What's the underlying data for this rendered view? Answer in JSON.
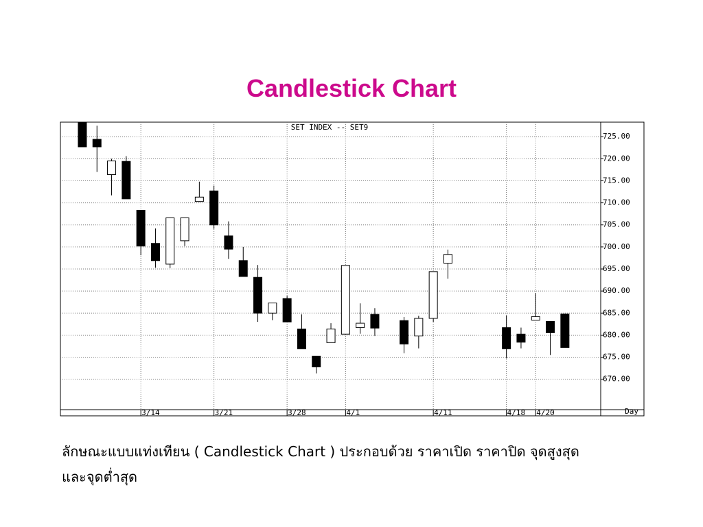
{
  "slide_title": "Candlestick Chart",
  "caption": [
    "ลักษณะแบบแท่งเทียน ( Candlestick Chart ) ประกอบด้วย ราคาเปิด ราคาปิด จุดสูงสุด",
    "และจุดต่ำสุด"
  ],
  "chart_data": {
    "type": "candlestick",
    "title": "SET INDEX -- SET9",
    "x_label": "Day",
    "categories": [
      null,
      null,
      null,
      null,
      "3/14",
      null,
      null,
      null,
      null,
      "3/21",
      null,
      null,
      null,
      null,
      "3/28",
      null,
      null,
      null,
      "4/1",
      null,
      null,
      null,
      null,
      null,
      "4/11",
      null,
      null,
      null,
      null,
      "4/18",
      null,
      "4/20",
      null,
      null
    ],
    "open": [
      728.5,
      724.4,
      716.4,
      719.4,
      708.3,
      700.8,
      696.1,
      701.4,
      710.3,
      712.7,
      702.5,
      696.9,
      693.1,
      685.0,
      688.3,
      681.4,
      675.2,
      678.3,
      680.2,
      681.7,
      684.7,
      null,
      683.3,
      679.8,
      683.8,
      696.3,
      null,
      null,
      null,
      681.7,
      680.2,
      683.4,
      683.1,
      684.8
    ],
    "high": [
      729.0,
      727.5,
      720.0,
      720.6,
      708.3,
      704.2,
      706.6,
      706.6,
      714.8,
      713.9,
      705.8,
      700.0,
      695.9,
      687.3,
      688.9,
      684.7,
      675.2,
      682.7,
      695.8,
      687.2,
      686.1,
      null,
      684.1,
      684.4,
      694.4,
      699.4,
      null,
      null,
      null,
      684.5,
      681.7,
      689.5,
      683.1,
      684.9
    ],
    "low": [
      722.7,
      717.0,
      711.7,
      710.9,
      698.1,
      695.3,
      695.2,
      700.2,
      710.2,
      704.1,
      697.3,
      693.3,
      683.0,
      683.4,
      683.0,
      676.9,
      671.3,
      678.3,
      680.2,
      680.3,
      679.8,
      null,
      675.9,
      677.0,
      683.0,
      692.8,
      null,
      null,
      null,
      674.7,
      677.0,
      683.4,
      675.5,
      677.2
    ],
    "close": [
      722.7,
      722.7,
      719.5,
      710.9,
      700.2,
      696.9,
      706.6,
      706.6,
      711.3,
      705.0,
      699.5,
      693.3,
      685.0,
      687.3,
      683.0,
      676.9,
      672.8,
      681.4,
      695.8,
      682.7,
      681.6,
      null,
      678.0,
      683.8,
      694.4,
      698.3,
      null,
      null,
      null,
      676.9,
      678.4,
      684.2,
      680.6,
      677.2
    ],
    "up_color": "#ffffff",
    "down_color": "#000000",
    "ylim": [
      663.1,
      728.3
    ],
    "yticks": [
      {
        "value": 670,
        "label": "670.00"
      },
      {
        "value": 675,
        "label": "675.00"
      },
      {
        "value": 680,
        "label": "680.00"
      },
      {
        "value": 685,
        "label": "685.00"
      },
      {
        "value": 690,
        "label": "690.00"
      },
      {
        "value": 695,
        "label": "695.00"
      },
      {
        "value": 700,
        "label": "700.00"
      },
      {
        "value": 705,
        "label": "705.00"
      },
      {
        "value": 710,
        "label": "710.00"
      },
      {
        "value": 715,
        "label": "715.00"
      },
      {
        "value": 720,
        "label": "720.00"
      },
      {
        "value": 725,
        "label": "725.00"
      }
    ],
    "grid": true
  }
}
